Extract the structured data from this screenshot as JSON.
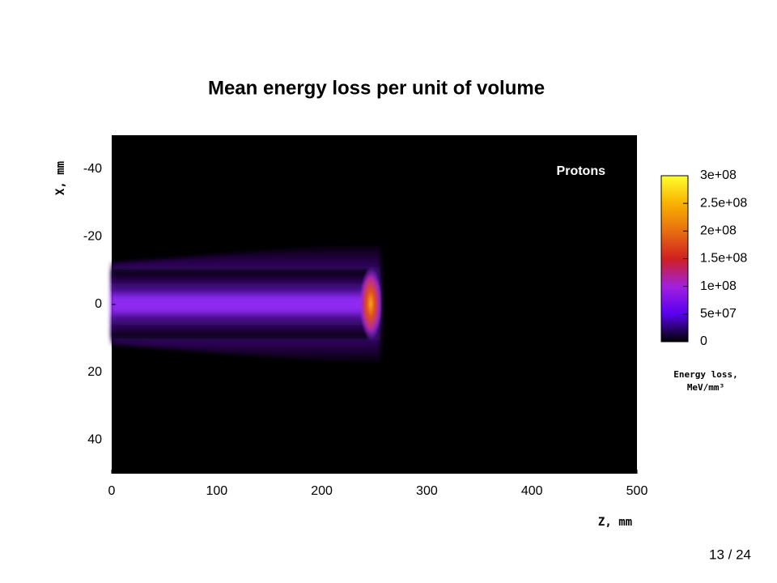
{
  "chart_data": {
    "type": "heatmap",
    "title": "Mean energy loss per unit of volume",
    "annotation": "Protons",
    "x_label": "Z, mm",
    "y_label": "X, mm",
    "xlim": [
      0,
      500
    ],
    "xticks": [
      0,
      100,
      200,
      300,
      400,
      500
    ],
    "ylim": [
      -50,
      50
    ],
    "yticks": [
      -40,
      -20,
      0,
      20,
      40
    ],
    "y_inverted": true,
    "colorbar": {
      "label": "Energy loss, MeV/mm³",
      "clim": [
        0,
        300000000
      ],
      "ticks": [
        0,
        {
          "value": 50000000,
          "label": "5e+07"
        },
        {
          "value": 100000000,
          "label": "1e+08"
        },
        {
          "value": 150000000,
          "label": "1.5e+08"
        },
        {
          "value": 200000000,
          "label": "2e+08"
        },
        {
          "value": 250000000,
          "label": "2.5e+08"
        },
        {
          "value": 300000000,
          "label": "3e+08"
        }
      ]
    }
  },
  "page_number": "13 / 24"
}
